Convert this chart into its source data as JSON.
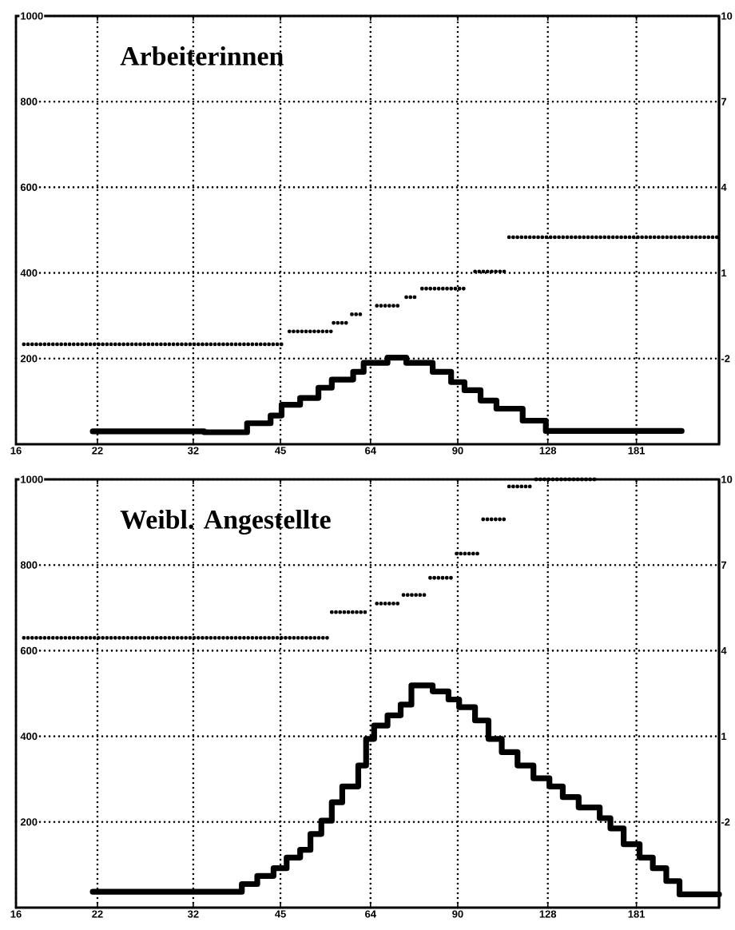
{
  "chart_data": [
    {
      "type": "step",
      "title": "Arbeiterinnen",
      "log": "x",
      "grid": true,
      "marker": "none",
      "xlim": [
        16,
        250
      ],
      "xticks": [
        16,
        22,
        32,
        45,
        64,
        90,
        128,
        181
      ],
      "ylim": [
        0,
        1000
      ],
      "yticks": [
        200,
        400,
        600,
        800,
        1000
      ],
      "y2lim": [
        -5,
        10
      ],
      "y2ticks": [
        -2,
        1,
        4,
        7,
        10
      ],
      "series": [
        {
          "color": "#000000",
          "line_style": "solid",
          "x": [
            21.6,
            33.4,
            39.5,
            43.3,
            45.2,
            48.6,
            52.2,
            55,
            59.8,
            62.3,
            68.4,
            73.6,
            81.6,
            87.7,
            92.4,
            98.4,
            104.7,
            116,
            127,
            216
          ],
          "values": [
            30,
            28,
            49,
            67,
            92,
            108,
            132,
            151,
            169,
            190,
            202,
            190,
            169,
            145,
            126,
            102,
            83,
            55,
            31,
            31
          ]
        },
        {
          "type": "line",
          "axis": "y2",
          "color": "#000000",
          "line_style": "dotted",
          "x": [
            16.5,
            45.6,
            46.1,
            46.6,
            55,
            55.2,
            55.4,
            58.5,
            59,
            59.5,
            62.3,
            64,
            65.6,
            72,
            72.8,
            73.6,
            76.7,
            77.5,
            78.3,
            92.4,
            94.3,
            96.3,
            109,
            109.5,
            110,
            250
          ],
          "values": [
            -1.5,
            -1.5,
            null,
            -1.05,
            -1.05,
            null,
            -0.75,
            -0.75,
            null,
            -0.45,
            -0.45,
            null,
            -0.15,
            -0.15,
            null,
            0.15,
            0.15,
            null,
            0.45,
            0.45,
            null,
            1.05,
            1.05,
            null,
            2.25,
            2.25
          ]
        }
      ]
    },
    {
      "type": "step",
      "title": "Weibl. Angestellte",
      "log": "x",
      "grid": true,
      "marker": "none",
      "xlim": [
        16,
        250
      ],
      "xticks": [
        16,
        22,
        32,
        45,
        64,
        90,
        128,
        181
      ],
      "ylim": [
        0,
        1000
      ],
      "yticks": [
        200,
        400,
        600,
        800,
        1000
      ],
      "y2lim": [
        -5,
        10
      ],
      "y2ticks": [
        -2,
        1,
        4,
        7,
        10
      ],
      "series": [
        {
          "color": "#000000",
          "line_style": "solid",
          "x": [
            21.6,
            38.7,
            41.1,
            43.8,
            46.1,
            48.6,
            50.6,
            52.8,
            55,
            57.3,
            61,
            62.9,
            64.9,
            68.4,
            72,
            75.1,
            81.6,
            86.8,
            90.5,
            96.3,
            101.5,
            106.9,
            113.7,
            121,
            128.8,
            135.7,
            144.4,
            156.8,
            163.5,
            172.2,
            183.3,
            193,
            203.4,
            214.2,
            250
          ],
          "values": [
            37,
            55,
            74,
            92,
            117,
            135,
            172,
            203,
            246,
            283,
            332,
            394,
            425,
            449,
            474,
            519,
            505,
            486,
            468,
            437,
            394,
            363,
            332,
            302,
            283,
            258,
            234,
            209,
            185,
            148,
            117,
            92,
            62,
            31,
            31
          ]
        },
        {
          "type": "line",
          "axis": "y2",
          "color": "#000000",
          "line_style": "dotted",
          "x": [
            16.5,
            54.5,
            54.7,
            55,
            63.6,
            64.6,
            65.6,
            72,
            72.4,
            72.8,
            79,
            79.9,
            80.8,
            87.7,
            88.6,
            89.6,
            97.3,
            98.3,
            99.4,
            109,
            109.5,
            110,
            119.8,
            121,
            122.3,
            153.6
          ],
          "values": [
            4.45,
            4.45,
            null,
            5.35,
            5.35,
            null,
            5.65,
            5.65,
            null,
            5.95,
            5.95,
            null,
            6.55,
            6.55,
            null,
            7.4,
            7.4,
            null,
            8.6,
            8.6,
            null,
            9.75,
            9.75,
            null,
            10,
            10
          ]
        }
      ]
    }
  ]
}
